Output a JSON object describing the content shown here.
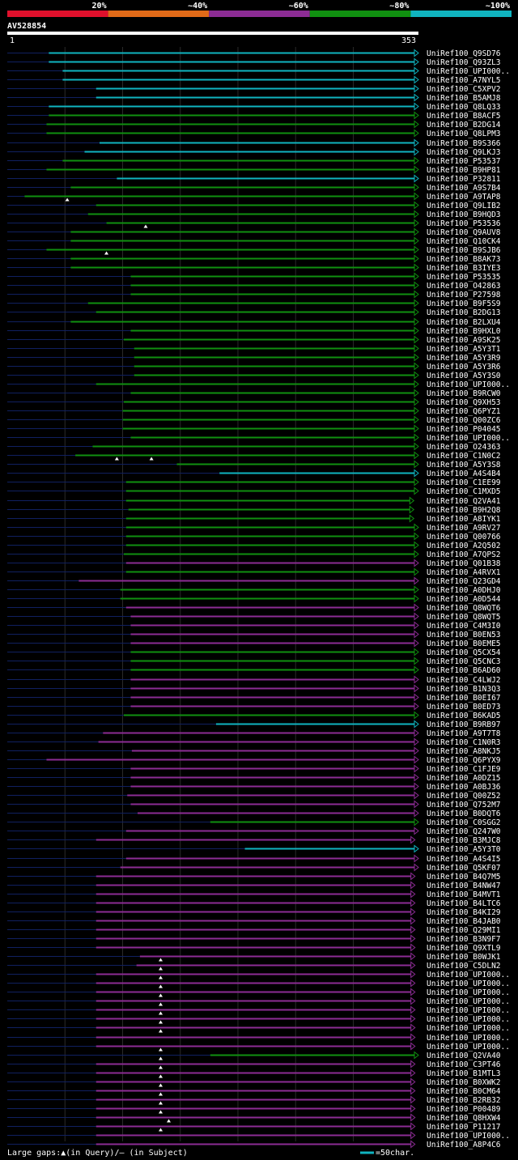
{
  "chart_data": {
    "type": "alignment_overview",
    "query_id": "AV528854",
    "query_start": "1",
    "query_end": "353",
    "legend_bins": [
      {
        "label": "20%",
        "color": "#e0102c"
      },
      {
        "label": "~40%",
        "color": "#e06a18"
      },
      {
        "label": "~60%",
        "color": "#8c2c94"
      },
      {
        "label": "~80%",
        "color": "#109010"
      },
      {
        "label": "~100%",
        "color": "#10b4c0"
      }
    ],
    "footer_text": "Large gaps:▲(in Query)/– (in Subject)",
    "scale_text": "=50char.",
    "hits": [
      {
        "name": "UniRef100_Q9SD76",
        "start": 36,
        "end": 353,
        "bin": "cyan",
        "arrow": true
      },
      {
        "name": "UniRef100_Q93ZL3",
        "start": 36,
        "end": 353,
        "bin": "cyan",
        "arrow": true
      },
      {
        "name": "UniRef100_UPI000..",
        "start": 48,
        "end": 353,
        "bin": "cyan",
        "arrow": true
      },
      {
        "name": "UniRef100_A7NYL5",
        "start": 48,
        "end": 353,
        "bin": "cyan",
        "arrow": true
      },
      {
        "name": "UniRef100_C5XPV2",
        "start": 77,
        "end": 353,
        "bin": "cyan",
        "arrow": true
      },
      {
        "name": "UniRef100_B5AMJ8",
        "start": 77,
        "end": 353,
        "bin": "cyan",
        "arrow": true
      },
      {
        "name": "UniRef100_Q8LQ33",
        "start": 36,
        "end": 353,
        "bin": "cyan",
        "arrow": true
      },
      {
        "name": "UniRef100_B8ACF5",
        "start": 36,
        "end": 353,
        "bin": "green",
        "arrow": true
      },
      {
        "name": "UniRef100_B2DG14",
        "start": 34,
        "end": 353,
        "bin": "green",
        "arrow": true
      },
      {
        "name": "UniRef100_Q8LPM3",
        "start": 34,
        "end": 353,
        "bin": "green",
        "arrow": true
      },
      {
        "name": "UniRef100_B9S366",
        "start": 80,
        "end": 353,
        "bin": "cyan",
        "arrow": true
      },
      {
        "name": "UniRef100_Q9LKJ3",
        "start": 67,
        "end": 353,
        "bin": "cyan",
        "arrow": true
      },
      {
        "name": "UniRef100_P53537",
        "start": 48,
        "end": 353,
        "bin": "green",
        "arrow": true
      },
      {
        "name": "UniRef100_B9HP81",
        "start": 34,
        "end": 353,
        "bin": "green",
        "arrow": true
      },
      {
        "name": "UniRef100_P32811",
        "start": 95,
        "end": 353,
        "bin": "cyan",
        "arrow": true
      },
      {
        "name": "UniRef100_A9S7B4",
        "start": 55,
        "end": 353,
        "bin": "green",
        "arrow": true
      },
      {
        "name": "UniRef100_A9TAP8",
        "start": 15,
        "end": 353,
        "bin": "green",
        "arrow": true
      },
      {
        "name": "UniRef100_Q9LIB2",
        "start": 77,
        "end": 353,
        "bin": "green",
        "arrow": true
      },
      {
        "name": "UniRef100_B9HQD3",
        "start": 70,
        "end": 353,
        "bin": "green",
        "arrow": true
      },
      {
        "name": "UniRef100_P53536",
        "start": 86,
        "end": 353,
        "bin": "green",
        "arrow": true
      },
      {
        "name": "UniRef100_Q9AUV8",
        "start": 55,
        "end": 353,
        "bin": "green",
        "arrow": true
      },
      {
        "name": "UniRef100_Q10CK4",
        "start": 55,
        "end": 353,
        "bin": "green",
        "arrow": true
      },
      {
        "name": "UniRef100_B9SJB6",
        "start": 34,
        "end": 353,
        "bin": "green",
        "arrow": true
      },
      {
        "name": "UniRef100_B8AK73",
        "start": 55,
        "end": 353,
        "bin": "green",
        "arrow": true
      },
      {
        "name": "UniRef100_B3IYE3",
        "start": 55,
        "end": 353,
        "bin": "green",
        "arrow": true
      },
      {
        "name": "UniRef100_P53535",
        "start": 107,
        "end": 353,
        "bin": "green",
        "arrow": true
      },
      {
        "name": "UniRef100_O42863",
        "start": 107,
        "end": 353,
        "bin": "green",
        "arrow": true
      },
      {
        "name": "UniRef100_P27598",
        "start": 107,
        "end": 353,
        "bin": "green",
        "arrow": true
      },
      {
        "name": "UniRef100_B9F5S9",
        "start": 70,
        "end": 353,
        "bin": "green",
        "arrow": true
      },
      {
        "name": "UniRef100_B2DG13",
        "start": 77,
        "end": 353,
        "bin": "green",
        "arrow": true
      },
      {
        "name": "UniRef100_B2LXU4",
        "start": 55,
        "end": 353,
        "bin": "green",
        "arrow": true
      },
      {
        "name": "UniRef100_B9HXL0",
        "start": 107,
        "end": 353,
        "bin": "green",
        "arrow": true
      },
      {
        "name": "UniRef100_A9SK25",
        "start": 101,
        "end": 353,
        "bin": "green",
        "arrow": true
      },
      {
        "name": "UniRef100_A5Y3T1",
        "start": 110,
        "end": 353,
        "bin": "green",
        "arrow": true
      },
      {
        "name": "UniRef100_A5Y3R9",
        "start": 110,
        "end": 353,
        "bin": "green",
        "arrow": true
      },
      {
        "name": "UniRef100_A5Y3R6",
        "start": 110,
        "end": 353,
        "bin": "green",
        "arrow": true
      },
      {
        "name": "UniRef100_A5Y3S0",
        "start": 110,
        "end": 353,
        "bin": "green",
        "arrow": true
      },
      {
        "name": "UniRef100_UPI000..",
        "start": 77,
        "end": 353,
        "bin": "green",
        "arrow": true
      },
      {
        "name": "UniRef100_B9RCW0",
        "start": 107,
        "end": 353,
        "bin": "green",
        "arrow": true
      },
      {
        "name": "UniRef100_Q9XH53",
        "start": 101,
        "end": 353,
        "bin": "green",
        "arrow": true
      },
      {
        "name": "UniRef100_Q6PYZ1",
        "start": 100,
        "end": 353,
        "bin": "green",
        "arrow": true
      },
      {
        "name": "UniRef100_Q00ZC6",
        "start": 100,
        "end": 353,
        "bin": "green",
        "arrow": true
      },
      {
        "name": "UniRef100_P04045",
        "start": 100,
        "end": 353,
        "bin": "green",
        "arrow": true
      },
      {
        "name": "UniRef100_UPI000..",
        "start": 107,
        "end": 353,
        "bin": "green",
        "arrow": true
      },
      {
        "name": "UniRef100_O24363",
        "start": 74,
        "end": 353,
        "bin": "green",
        "arrow": true
      },
      {
        "name": "UniRef100_C1N0C2",
        "start": 59,
        "end": 353,
        "bin": "green",
        "arrow": true
      },
      {
        "name": "UniRef100_A5Y3S8",
        "start": 147,
        "end": 353,
        "bin": "green",
        "arrow": true
      },
      {
        "name": "UniRef100_A4S4B4",
        "start": 184,
        "end": 353,
        "bin": "cyan",
        "arrow": true
      },
      {
        "name": "UniRef100_C1EE99",
        "start": 103,
        "end": 353,
        "bin": "green",
        "arrow": true
      },
      {
        "name": "UniRef100_C1MXD5",
        "start": 103,
        "end": 353,
        "bin": "green",
        "arrow": true
      },
      {
        "name": "UniRef100_Q2VA41",
        "start": 103,
        "end": 349,
        "bin": "green",
        "arrow": true
      },
      {
        "name": "UniRef100_B9H2Q8",
        "start": 105,
        "end": 349,
        "bin": "green",
        "arrow": true
      },
      {
        "name": "UniRef100_A8IYK1",
        "start": 103,
        "end": 349,
        "bin": "green",
        "arrow": true
      },
      {
        "name": "UniRef100_A9RV27",
        "start": 103,
        "end": 353,
        "bin": "green",
        "arrow": true
      },
      {
        "name": "UniRef100_Q00766",
        "start": 103,
        "end": 353,
        "bin": "green",
        "arrow": true
      },
      {
        "name": "UniRef100_A2Q502",
        "start": 103,
        "end": 353,
        "bin": "green",
        "arrow": true
      },
      {
        "name": "UniRef100_A7QPS2",
        "start": 101,
        "end": 353,
        "bin": "green",
        "arrow": true
      },
      {
        "name": "UniRef100_Q01B38",
        "start": 103,
        "end": 353,
        "bin": "purple",
        "arrow": true
      },
      {
        "name": "UniRef100_A4RVX1",
        "start": 103,
        "end": 353,
        "bin": "green",
        "arrow": true
      },
      {
        "name": "UniRef100_Q23GD4",
        "start": 62,
        "end": 353,
        "bin": "purple",
        "arrow": true
      },
      {
        "name": "UniRef100_A0DHJ0",
        "start": 98,
        "end": 353,
        "bin": "green",
        "arrow": true
      },
      {
        "name": "UniRef100_A0D544",
        "start": 98,
        "end": 353,
        "bin": "green",
        "arrow": true
      },
      {
        "name": "UniRef100_Q8WQT6",
        "start": 103,
        "end": 353,
        "bin": "purple",
        "arrow": true
      },
      {
        "name": "UniRef100_Q8WQT5",
        "start": 107,
        "end": 353,
        "bin": "purple",
        "arrow": true
      },
      {
        "name": "UniRef100_C4M3I0",
        "start": 107,
        "end": 353,
        "bin": "purple",
        "arrow": true
      },
      {
        "name": "UniRef100_B0EN53",
        "start": 107,
        "end": 353,
        "bin": "purple",
        "arrow": true
      },
      {
        "name": "UniRef100_B0EME5",
        "start": 107,
        "end": 353,
        "bin": "purple",
        "arrow": true
      },
      {
        "name": "UniRef100_Q5CX54",
        "start": 107,
        "end": 353,
        "bin": "green",
        "arrow": true
      },
      {
        "name": "UniRef100_Q5CNC3",
        "start": 107,
        "end": 353,
        "bin": "green",
        "arrow": true
      },
      {
        "name": "UniRef100_B6AD60",
        "start": 107,
        "end": 353,
        "bin": "green",
        "arrow": true
      },
      {
        "name": "UniRef100_C4LWJ2",
        "start": 107,
        "end": 353,
        "bin": "purple",
        "arrow": true
      },
      {
        "name": "UniRef100_B1N3Q3",
        "start": 107,
        "end": 353,
        "bin": "purple",
        "arrow": true
      },
      {
        "name": "UniRef100_B0EI67",
        "start": 107,
        "end": 353,
        "bin": "purple",
        "arrow": true
      },
      {
        "name": "UniRef100_B0ED73",
        "start": 107,
        "end": 353,
        "bin": "purple",
        "arrow": true
      },
      {
        "name": "UniRef100_B6KAD5",
        "start": 101,
        "end": 353,
        "bin": "green",
        "arrow": true
      },
      {
        "name": "UniRef100_B9RB97",
        "start": 181,
        "end": 353,
        "bin": "cyan",
        "arrow": true
      },
      {
        "name": "UniRef100_A9T7T8",
        "start": 83,
        "end": 353,
        "bin": "purple",
        "arrow": true
      },
      {
        "name": "UniRef100_C1N0R3",
        "start": 79,
        "end": 353,
        "bin": "purple",
        "arrow": true
      },
      {
        "name": "UniRef100_A8NKJ5",
        "start": 108,
        "end": 353,
        "bin": "purple",
        "arrow": true
      },
      {
        "name": "UniRef100_Q6PYX9",
        "start": 34,
        "end": 353,
        "bin": "purple",
        "arrow": true
      },
      {
        "name": "UniRef100_C1FJE9",
        "start": 107,
        "end": 353,
        "bin": "purple",
        "arrow": true
      },
      {
        "name": "UniRef100_A0DZ15",
        "start": 107,
        "end": 353,
        "bin": "purple",
        "arrow": true
      },
      {
        "name": "UniRef100_A0BJ36",
        "start": 107,
        "end": 353,
        "bin": "purple",
        "arrow": true
      },
      {
        "name": "UniRef100_Q00Z52",
        "start": 104,
        "end": 353,
        "bin": "purple",
        "arrow": true
      },
      {
        "name": "UniRef100_Q752M7",
        "start": 107,
        "end": 353,
        "bin": "purple",
        "arrow": true
      },
      {
        "name": "UniRef100_B0DQT6",
        "start": 113,
        "end": 353,
        "bin": "purple",
        "arrow": true
      },
      {
        "name": "UniRef100_C0SGG2",
        "start": 176,
        "end": 353,
        "bin": "green",
        "arrow": true
      },
      {
        "name": "UniRef100_Q247W0",
        "start": 103,
        "end": 353,
        "bin": "purple",
        "arrow": true
      },
      {
        "name": "UniRef100_B3MJC8",
        "start": 77,
        "end": 350,
        "bin": "purple",
        "arrow": true
      },
      {
        "name": "UniRef100_A5Y3T0",
        "start": 206,
        "end": 353,
        "bin": "cyan",
        "arrow": true
      },
      {
        "name": "UniRef100_A4S4I5",
        "start": 103,
        "end": 353,
        "bin": "purple",
        "arrow": true
      },
      {
        "name": "UniRef100_Q5KF07",
        "start": 98,
        "end": 353,
        "bin": "purple",
        "arrow": true
      },
      {
        "name": "UniRef100_B4Q7M5",
        "start": 77,
        "end": 350,
        "bin": "purple",
        "arrow": true
      },
      {
        "name": "UniRef100_B4NW47",
        "start": 77,
        "end": 350,
        "bin": "purple",
        "arrow": true
      },
      {
        "name": "UniRef100_B4MVT1",
        "start": 77,
        "end": 350,
        "bin": "purple",
        "arrow": true
      },
      {
        "name": "UniRef100_B4LTC6",
        "start": 77,
        "end": 350,
        "bin": "purple",
        "arrow": true
      },
      {
        "name": "UniRef100_B4KI29",
        "start": 77,
        "end": 350,
        "bin": "purple",
        "arrow": true
      },
      {
        "name": "UniRef100_B4JAB0",
        "start": 77,
        "end": 350,
        "bin": "purple",
        "arrow": true
      },
      {
        "name": "UniRef100_Q29MI1",
        "start": 77,
        "end": 350,
        "bin": "purple",
        "arrow": true
      },
      {
        "name": "UniRef100_B3N9F7",
        "start": 77,
        "end": 350,
        "bin": "purple",
        "arrow": true
      },
      {
        "name": "UniRef100_Q9XTL9",
        "start": 77,
        "end": 350,
        "bin": "purple",
        "arrow": true
      },
      {
        "name": "UniRef100_B0WJK1",
        "start": 115,
        "end": 350,
        "bin": "purple",
        "arrow": true
      },
      {
        "name": "UniRef100_C5DLN2",
        "start": 112,
        "end": 350,
        "bin": "purple",
        "arrow": true
      },
      {
        "name": "UniRef100_UPI000..",
        "start": 77,
        "end": 350,
        "bin": "purple",
        "arrow": true
      },
      {
        "name": "UniRef100_UPI000..",
        "start": 77,
        "end": 350,
        "bin": "purple",
        "arrow": true
      },
      {
        "name": "UniRef100_UPI000..",
        "start": 77,
        "end": 350,
        "bin": "purple",
        "arrow": true
      },
      {
        "name": "UniRef100_UPI000..",
        "start": 77,
        "end": 350,
        "bin": "purple",
        "arrow": true
      },
      {
        "name": "UniRef100_UPI000..",
        "start": 77,
        "end": 350,
        "bin": "purple",
        "arrow": true
      },
      {
        "name": "UniRef100_UPI000..",
        "start": 77,
        "end": 350,
        "bin": "purple",
        "arrow": true
      },
      {
        "name": "UniRef100_UPI000..",
        "start": 77,
        "end": 350,
        "bin": "purple",
        "arrow": true
      },
      {
        "name": "UniRef100_UPI000..",
        "start": 77,
        "end": 350,
        "bin": "purple",
        "arrow": true
      },
      {
        "name": "UniRef100_UPI000..",
        "start": 77,
        "end": 350,
        "bin": "purple",
        "arrow": true
      },
      {
        "name": "UniRef100_Q2VA40",
        "start": 176,
        "end": 353,
        "bin": "green",
        "arrow": true
      },
      {
        "name": "UniRef100_C3PT46",
        "start": 77,
        "end": 350,
        "bin": "purple",
        "arrow": true
      },
      {
        "name": "UniRef100_B1MTL3",
        "start": 77,
        "end": 350,
        "bin": "purple",
        "arrow": true
      },
      {
        "name": "UniRef100_B0XWK2",
        "start": 77,
        "end": 350,
        "bin": "purple",
        "arrow": true
      },
      {
        "name": "UniRef100_B0CM64",
        "start": 77,
        "end": 350,
        "bin": "purple",
        "arrow": true
      },
      {
        "name": "UniRef100_B2RB32",
        "start": 77,
        "end": 350,
        "bin": "purple",
        "arrow": true
      },
      {
        "name": "UniRef100_P00489",
        "start": 77,
        "end": 350,
        "bin": "purple",
        "arrow": true
      },
      {
        "name": "UniRef100_Q8HXW4",
        "start": 77,
        "end": 350,
        "bin": "purple",
        "arrow": true
      },
      {
        "name": "UniRef100_P11217",
        "start": 77,
        "end": 350,
        "bin": "purple",
        "arrow": true
      },
      {
        "name": "UniRef100_UPI000..",
        "start": 77,
        "end": 350,
        "bin": "purple",
        "arrow": true
      },
      {
        "name": "UniRef100_A8P4C6",
        "start": 77,
        "end": 350,
        "bin": "purple",
        "arrow": true
      }
    ],
    "query_gap_marks": [
      {
        "row": 16,
        "pos": 52
      },
      {
        "row": 19,
        "pos": 120
      },
      {
        "row": 22,
        "pos": 86
      },
      {
        "row": 45,
        "pos": 95
      },
      {
        "row": 45,
        "pos": 125
      },
      {
        "row": 101,
        "pos": 133
      },
      {
        "row": 102,
        "pos": 133
      },
      {
        "row": 103,
        "pos": 133
      },
      {
        "row": 104,
        "pos": 133
      },
      {
        "row": 105,
        "pos": 133
      },
      {
        "row": 106,
        "pos": 133
      },
      {
        "row": 107,
        "pos": 133
      },
      {
        "row": 108,
        "pos": 133
      },
      {
        "row": 109,
        "pos": 133
      },
      {
        "row": 111,
        "pos": 133
      },
      {
        "row": 112,
        "pos": 133
      },
      {
        "row": 113,
        "pos": 133
      },
      {
        "row": 114,
        "pos": 133
      },
      {
        "row": 115,
        "pos": 133
      },
      {
        "row": 116,
        "pos": 133
      },
      {
        "row": 117,
        "pos": 133
      },
      {
        "row": 118,
        "pos": 133
      },
      {
        "row": 119,
        "pos": 140
      },
      {
        "row": 120,
        "pos": 133
      }
    ]
  }
}
